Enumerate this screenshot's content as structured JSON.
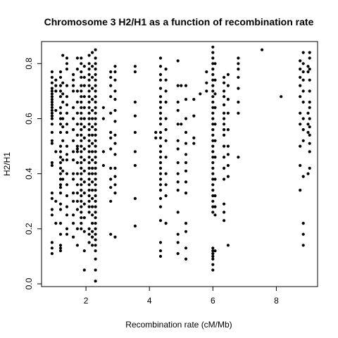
{
  "chart_data": {
    "type": "scatter",
    "title": "Chromosome 3 H2/H1 as a function of recombination rate",
    "xlabel": "Recombination rate (cM/Mb)",
    "ylabel": "H2/H1",
    "xlim": [
      0.6,
      9.3
    ],
    "ylim": [
      -0.01,
      0.88
    ],
    "xticks": [
      2,
      4,
      6,
      8
    ],
    "yticks": [
      0.0,
      0.2,
      0.4,
      0.6,
      0.8
    ],
    "marker_color": "#000000",
    "clusters": [
      {
        "x": 0.93,
        "values": [
          0.77,
          0.75,
          0.73,
          0.71,
          0.7,
          0.69,
          0.68,
          0.67,
          0.66,
          0.65,
          0.64,
          0.63,
          0.62,
          0.61,
          0.6,
          0.58,
          0.55,
          0.52,
          0.51,
          0.44,
          0.43,
          0.33,
          0.31,
          0.27,
          0.25,
          0.15,
          0.13,
          0.11
        ]
      },
      {
        "x": 1.05,
        "values": [
          0.74,
          0.72,
          0.7,
          0.63,
          0.48,
          0.3,
          0.22
        ]
      },
      {
        "x": 1.2,
        "values": [
          0.77,
          0.75,
          0.72,
          0.7,
          0.68,
          0.64,
          0.62,
          0.6,
          0.58,
          0.55,
          0.5,
          0.48,
          0.46,
          0.44,
          0.42,
          0.4,
          0.38,
          0.36,
          0.35,
          0.33,
          0.29,
          0.27,
          0.22,
          0.18,
          0.14,
          0.13,
          0.12
        ]
      },
      {
        "x": 1.27,
        "values": [
          0.83,
          0.73,
          0.69,
          0.66,
          0.6,
          0.57,
          0.52,
          0.45,
          0.41,
          0.38
        ]
      },
      {
        "x": 1.4,
        "values": [
          0.82,
          0.8,
          0.78,
          0.72,
          0.68,
          0.65,
          0.62,
          0.58,
          0.55,
          0.5,
          0.47,
          0.45,
          0.4,
          0.36,
          0.32,
          0.28,
          0.25,
          0.2,
          0.18
        ]
      },
      {
        "x": 1.6,
        "values": [
          0.76,
          0.74,
          0.72,
          0.7,
          0.64,
          0.6,
          0.56,
          0.52,
          0.48,
          0.45,
          0.4,
          0.38,
          0.33,
          0.3,
          0.25,
          0.22,
          0.17
        ]
      },
      {
        "x": 1.73,
        "values": [
          0.82,
          0.78,
          0.7,
          0.66,
          0.62,
          0.58,
          0.54,
          0.5,
          0.49,
          0.48,
          0.44,
          0.4,
          0.36,
          0.33,
          0.3,
          0.27,
          0.2,
          0.14
        ]
      },
      {
        "x": 1.85,
        "values": [
          0.82,
          0.8,
          0.77,
          0.75,
          0.72,
          0.7,
          0.68,
          0.66,
          0.64,
          0.62,
          0.6,
          0.58,
          0.56,
          0.54,
          0.52,
          0.5,
          0.48,
          0.46,
          0.44,
          0.42,
          0.4,
          0.38,
          0.36,
          0.34,
          0.32,
          0.3,
          0.28,
          0.26,
          0.24,
          0.22,
          0.2
        ]
      },
      {
        "x": 1.95,
        "values": [
          0.79,
          0.75,
          0.72,
          0.68,
          0.64,
          0.6,
          0.57,
          0.53,
          0.49,
          0.45,
          0.41,
          0.37,
          0.33,
          0.29,
          0.24,
          0.19,
          0.12,
          0.05
        ]
      },
      {
        "x": 2.1,
        "values": [
          0.83,
          0.8,
          0.78,
          0.76,
          0.74,
          0.72,
          0.7,
          0.68,
          0.66,
          0.64,
          0.62,
          0.6,
          0.58,
          0.56,
          0.54,
          0.52,
          0.5,
          0.48,
          0.46,
          0.44,
          0.42,
          0.4,
          0.38,
          0.36,
          0.34,
          0.32,
          0.3,
          0.28,
          0.26,
          0.2,
          0.18,
          0.15
        ]
      },
      {
        "x": 2.2,
        "values": [
          0.84,
          0.79,
          0.75,
          0.71,
          0.67,
          0.63,
          0.6,
          0.57,
          0.54,
          0.51,
          0.48,
          0.45,
          0.42,
          0.4,
          0.37,
          0.34,
          0.31,
          0.28,
          0.25,
          0.22,
          0.19,
          0.17,
          0.14
        ]
      },
      {
        "x": 2.3,
        "values": [
          0.85,
          0.82,
          0.8,
          0.78,
          0.76,
          0.74,
          0.72,
          0.7,
          0.68,
          0.66,
          0.64,
          0.62,
          0.6,
          0.58,
          0.56,
          0.54,
          0.52,
          0.5,
          0.48,
          0.46,
          0.44,
          0.42,
          0.4,
          0.38,
          0.36,
          0.34,
          0.32,
          0.3,
          0.28,
          0.26,
          0.24,
          0.22,
          0.2,
          0.18,
          0.16,
          0.14,
          0.12,
          0.09,
          0.05,
          0.01
        ]
      },
      {
        "x": 2.55,
        "values": [
          0.64,
          0.6,
          0.48,
          0.43
        ]
      },
      {
        "x": 2.78,
        "values": [
          0.77,
          0.75,
          0.72,
          0.68,
          0.62,
          0.55,
          0.53,
          0.49,
          0.42,
          0.38,
          0.35,
          0.3,
          0.18
        ]
      },
      {
        "x": 2.92,
        "values": [
          0.79,
          0.77,
          0.74,
          0.7,
          0.67,
          0.63,
          0.59,
          0.54,
          0.51,
          0.47,
          0.42,
          0.39,
          0.36,
          0.33,
          0.17
        ]
      },
      {
        "x": 3.55,
        "values": [
          0.79,
          0.77,
          0.66,
          0.61,
          0.55,
          0.48,
          0.43,
          0.31,
          0.21
        ]
      },
      {
        "x": 4.2,
        "values": [
          0.55,
          0.53
        ]
      },
      {
        "x": 4.35,
        "values": [
          0.82,
          0.79,
          0.76,
          0.74,
          0.71,
          0.68,
          0.66,
          0.64,
          0.62,
          0.6,
          0.58,
          0.55,
          0.53,
          0.5,
          0.48,
          0.46,
          0.44,
          0.42,
          0.4,
          0.38,
          0.36,
          0.34,
          0.31,
          0.28,
          0.23,
          0.15,
          0.12,
          0.1
        ]
      },
      {
        "x": 4.52,
        "values": [
          0.78,
          0.74,
          0.7,
          0.66,
          0.6,
          0.56,
          0.52,
          0.46,
          0.4,
          0.36,
          0.32,
          0.22
        ]
      },
      {
        "x": 4.9,
        "values": [
          0.81,
          0.72,
          0.66,
          0.63,
          0.58,
          0.52,
          0.49,
          0.44,
          0.4,
          0.37,
          0.34,
          0.26,
          0.18,
          0.15,
          0.11
        ]
      },
      {
        "x": 5.0,
        "values": [
          0.72,
          0.58
        ]
      },
      {
        "x": 5.15,
        "values": [
          0.72,
          0.67,
          0.6,
          0.55,
          0.51,
          0.47,
          0.44,
          0.41,
          0.37,
          0.33,
          0.22,
          0.19,
          0.13,
          0.09
        ]
      },
      {
        "x": 5.4,
        "values": [
          0.67,
          0.61,
          0.53,
          0.51
        ]
      },
      {
        "x": 5.6,
        "values": [
          0.69
        ]
      },
      {
        "x": 5.8,
        "values": [
          0.77,
          0.73,
          0.7
        ]
      },
      {
        "x": 6.0,
        "values": [
          0.86,
          0.84,
          0.82,
          0.8,
          0.78,
          0.76,
          0.74,
          0.72,
          0.7,
          0.68,
          0.66,
          0.64,
          0.62,
          0.6,
          0.58,
          0.56,
          0.54,
          0.52,
          0.5,
          0.48,
          0.46,
          0.44,
          0.42,
          0.4,
          0.38,
          0.36,
          0.34,
          0.32,
          0.3,
          0.28,
          0.26,
          0.13,
          0.12,
          0.11,
          0.1,
          0.09,
          0.07,
          0.05
        ]
      },
      {
        "x": 6.07,
        "values": [
          0.8,
          0.74,
          0.69,
          0.64,
          0.58,
          0.52,
          0.46,
          0.38,
          0.32,
          0.28,
          0.25,
          0.12
        ]
      },
      {
        "x": 6.35,
        "values": [
          0.75,
          0.73,
          0.7,
          0.68,
          0.65,
          0.62,
          0.6,
          0.58,
          0.56,
          0.54,
          0.5,
          0.46,
          0.42,
          0.38,
          0.29,
          0.26,
          0.23
        ]
      },
      {
        "x": 6.48,
        "values": [
          0.76,
          0.72,
          0.67,
          0.62,
          0.56,
          0.5,
          0.47,
          0.43,
          0.39,
          0.14
        ]
      },
      {
        "x": 6.8,
        "values": [
          0.82,
          0.8,
          0.78,
          0.75,
          0.71,
          0.66,
          0.62,
          0.46
        ]
      },
      {
        "x": 7.55,
        "values": [
          0.85
        ]
      },
      {
        "x": 8.15,
        "values": [
          0.68
        ]
      },
      {
        "x": 8.75,
        "values": [
          0.81,
          0.78,
          0.75,
          0.72,
          0.68,
          0.62,
          0.58,
          0.5,
          0.43,
          0.34
        ]
      },
      {
        "x": 8.85,
        "values": [
          0.84,
          0.8,
          0.77,
          0.74,
          0.7,
          0.66,
          0.6,
          0.56,
          0.52,
          0.39,
          0.22,
          0.18,
          0.14
        ]
      },
      {
        "x": 9.0,
        "values": [
          0.79,
          0.77,
          0.62,
          0.58,
          0.55,
          0.4
        ]
      },
      {
        "x": 9.05,
        "values": [
          0.84,
          0.82,
          0.78,
          0.74,
          0.7,
          0.66,
          0.64,
          0.6,
          0.57,
          0.54,
          0.51,
          0.48,
          0.42
        ]
      }
    ]
  }
}
